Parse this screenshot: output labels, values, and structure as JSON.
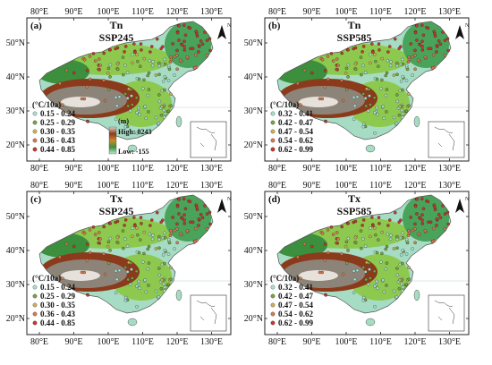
{
  "colors": {
    "frame": "#222222",
    "lowland": "#7fcfa8",
    "plain": "#a6dcc4",
    "hills": "#4aa35a",
    "upland": "#8dc94e",
    "plateau_green": "#3b8f3d",
    "mountain_brown": "#8c3a1c",
    "tibet_gray": "#8d8479",
    "snow": "#e6e1da",
    "sea": "#ffffff",
    "station_outline": "#1b1b1b"
  },
  "panels": [
    {
      "id": "a",
      "tag": "(a)",
      "variable": "Tn",
      "scenario": "SSP245",
      "legend_title": "(°C/10a)",
      "legend_items": [
        {
          "label": "0.15 - 0.24",
          "color": "#a8e0d0"
        },
        {
          "label": "0.25 - 0.29",
          "color": "#7aa33f"
        },
        {
          "label": "0.30 - 0.35",
          "color": "#c9b25c"
        },
        {
          "label": "0.36 - 0.43",
          "color": "#d67a4f"
        },
        {
          "label": "0.44 - 0.85",
          "color": "#c23a2b"
        }
      ],
      "dem": {
        "unit": "(m)",
        "high": "High: 8243",
        "low": "Low: -155"
      }
    },
    {
      "id": "b",
      "tag": "(b)",
      "variable": "Tn",
      "scenario": "SSP585",
      "legend_title": "(°C/10a)",
      "legend_items": [
        {
          "label": "0.32 - 0.41",
          "color": "#a8e0d0"
        },
        {
          "label": "0.42 - 0.47",
          "color": "#7aa33f"
        },
        {
          "label": "0.47 - 0.54",
          "color": "#c9b25c"
        },
        {
          "label": "0.54 - 0.62",
          "color": "#d67a4f"
        },
        {
          "label": "0.62 - 0.99",
          "color": "#c23a2b"
        }
      ]
    },
    {
      "id": "c",
      "tag": "(c)",
      "variable": "Tx",
      "scenario": "SSP245",
      "legend_title": "(°C/10a)",
      "legend_items": [
        {
          "label": "0.15 - 0.24",
          "color": "#a8e0d0"
        },
        {
          "label": "0.25 - 0.29",
          "color": "#7aa33f"
        },
        {
          "label": "0.30 - 0.35",
          "color": "#c9b25c"
        },
        {
          "label": "0.36 - 0.43",
          "color": "#d67a4f"
        },
        {
          "label": "0.44 - 0.85",
          "color": "#c23a2b"
        }
      ]
    },
    {
      "id": "d",
      "tag": "(d)",
      "variable": "Tx",
      "scenario": "SSP585",
      "legend_title": "(°C/10a)",
      "legend_items": [
        {
          "label": "0.32 - 0.41",
          "color": "#a8e0d0"
        },
        {
          "label": "0.42 - 0.47",
          "color": "#7aa33f"
        },
        {
          "label": "0.47 - 0.54",
          "color": "#c9b25c"
        },
        {
          "label": "0.54 - 0.62",
          "color": "#d67a4f"
        },
        {
          "label": "0.62 - 0.99",
          "color": "#c23a2b"
        }
      ]
    }
  ],
  "axes": {
    "lon_ticks": [
      "80°E",
      "90°E",
      "100°E",
      "110°E",
      "120°E",
      "130°E"
    ],
    "lat_ticks": [
      "50°N",
      "40°N",
      "30°N",
      "20°N"
    ]
  },
  "north_arrow": {
    "letter": "N",
    "icon": "north-arrow-icon"
  }
}
